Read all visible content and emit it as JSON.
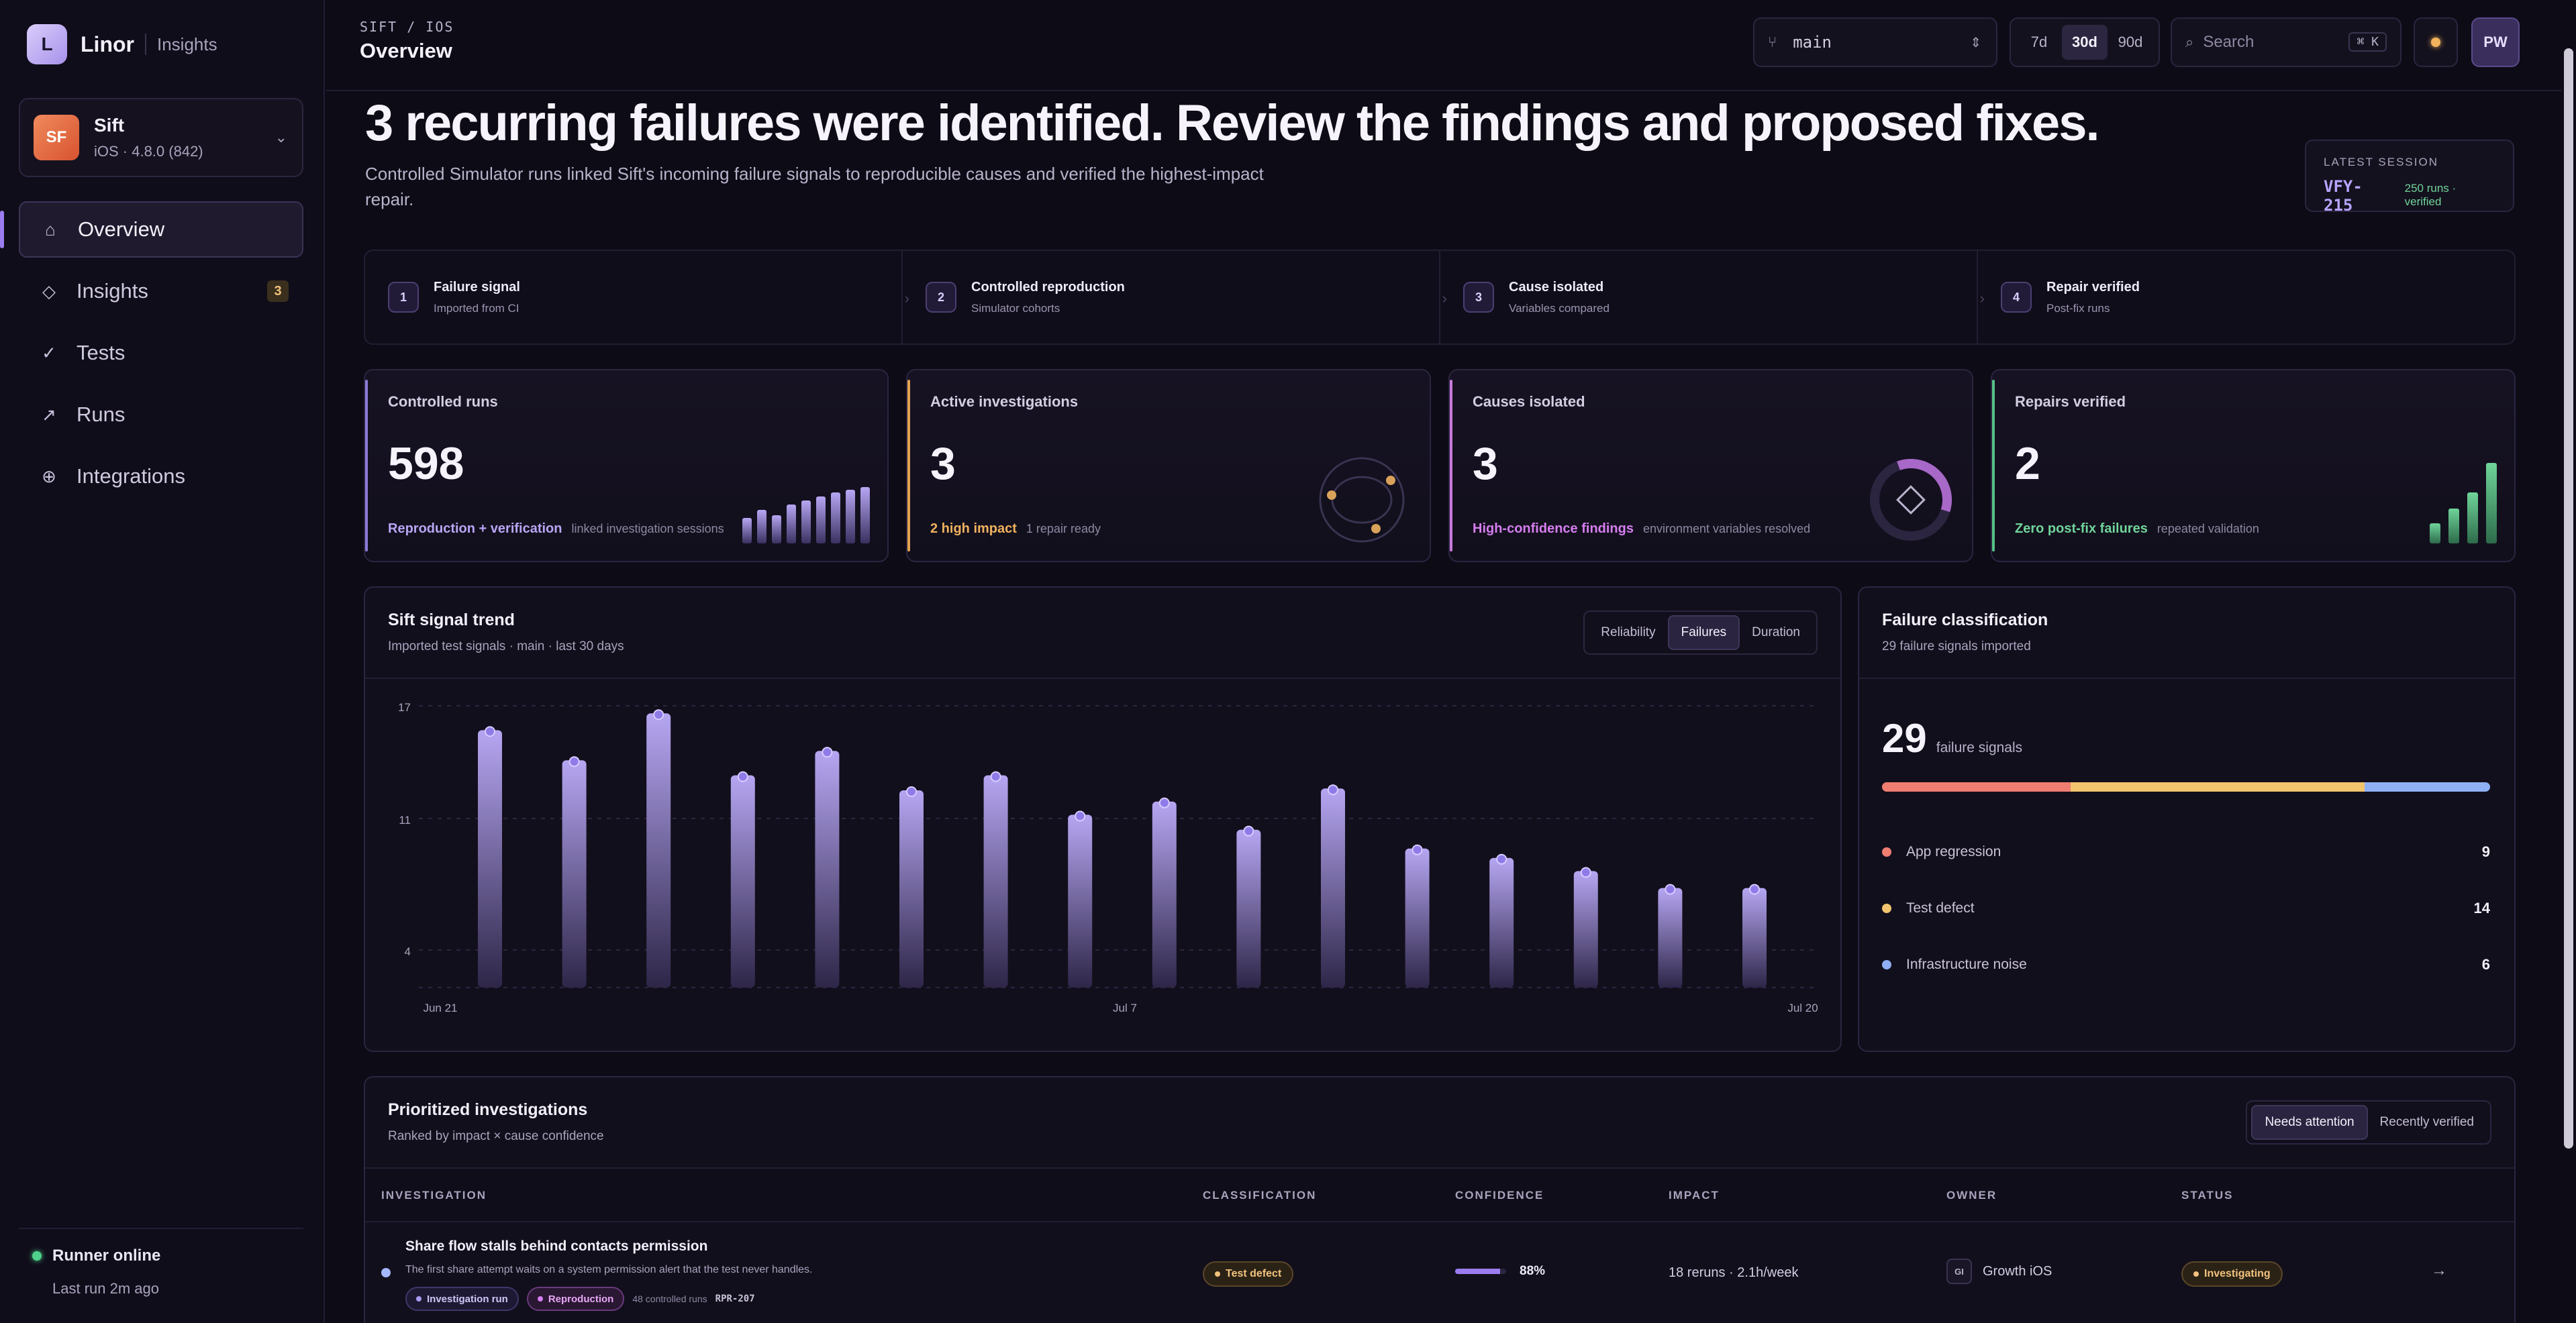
{
  "brand": {
    "logo_letter": "L",
    "name": "Linor",
    "section": "Insights"
  },
  "app": {
    "initials": "SF",
    "name": "Sift",
    "version": "iOS · 4.8.0 (842)"
  },
  "nav": [
    {
      "label": "Overview",
      "icon": "home-icon",
      "glyph": "⌂"
    },
    {
      "label": "Insights",
      "icon": "diamond-icon",
      "glyph": "◇",
      "badge": "3"
    },
    {
      "label": "Tests",
      "icon": "check-icon",
      "glyph": "✓"
    },
    {
      "label": "Runs",
      "icon": "arrow-up-right-icon",
      "glyph": "↗"
    },
    {
      "label": "Integrations",
      "icon": "plus-circle-icon",
      "glyph": "⊕"
    }
  ],
  "runner": {
    "title": "Runner online",
    "sub": "Last run 2m ago"
  },
  "topbar": {
    "breadcrumb": "SIFT / IOS",
    "title": "Overview",
    "branch": "main",
    "ranges": [
      "7d",
      "30d",
      "90d"
    ],
    "active_range": "30d",
    "search_placeholder": "Search",
    "search_shortcut": "⌘ K",
    "user_initials": "PW"
  },
  "hero": {
    "headline": "3 recurring failures were identified. Review the findings and proposed fixes.",
    "subline": "Controlled Simulator runs linked Sift's incoming failure signals to reproducible causes and verified the highest-impact repair.",
    "session_label": "LATEST SESSION",
    "session_id": "VFY-215",
    "session_meta": "250 runs · verified"
  },
  "steps": [
    {
      "num": "1",
      "title": "Failure signal",
      "sub": "Imported from CI"
    },
    {
      "num": "2",
      "title": "Controlled reproduction",
      "sub": "Simulator cohorts"
    },
    {
      "num": "3",
      "title": "Cause isolated",
      "sub": "Variables compared"
    },
    {
      "num": "4",
      "title": "Repair verified",
      "sub": "Post-fix runs"
    }
  ],
  "kpis": [
    {
      "title": "Controlled runs",
      "value": "598",
      "highlight": "Reproduction + verification",
      "note": "linked investigation sessions",
      "color": "#b8a6f5"
    },
    {
      "title": "Active investigations",
      "value": "3",
      "highlight": "2 high impact",
      "note": "1 repair ready",
      "color": "#f0b25e"
    },
    {
      "title": "Causes isolated",
      "value": "3",
      "highlight": "High-confidence findings",
      "note": "environment variables resolved",
      "color": "#d67ef0"
    },
    {
      "title": "Repairs verified",
      "value": "2",
      "highlight": "Zero post-fix failures",
      "note": "repeated validation",
      "color": "#6fd49a"
    }
  ],
  "trend": {
    "title": "Sift signal trend",
    "sub": "Imported test signals · main · last 30 days",
    "tabs": [
      "Reliability",
      "Failures",
      "Duration"
    ],
    "active_tab": "Failures"
  },
  "chart_data": {
    "type": "bar",
    "title": "Sift signal trend",
    "y_ticks": [
      "17",
      "11",
      "4"
    ],
    "ylim": [
      2,
      17
    ],
    "x_tick_labels": [
      "Jun 21",
      "Jul 7",
      "Jul 20"
    ],
    "values": [
      15.7,
      14.1,
      16.6,
      13.3,
      14.6,
      12.5,
      13.3,
      11.2,
      11.9,
      10.4,
      12.6,
      9.4,
      8.9,
      8.2,
      7.3,
      7.3
    ],
    "grid": true,
    "color": "#a897e8"
  },
  "classification": {
    "title": "Failure classification",
    "sub": "29 failure signals imported",
    "total": "29",
    "total_label": "failure signals",
    "items": [
      {
        "label": "App regression",
        "value": "9",
        "color": "#f07d72"
      },
      {
        "label": "Test defect",
        "value": "14",
        "color": "#f2c46d"
      },
      {
        "label": "Infrastructure noise",
        "value": "6",
        "color": "#8fb0f5"
      }
    ]
  },
  "investigations": {
    "title": "Prioritized investigations",
    "sub": "Ranked by impact × cause confidence",
    "tabs": [
      "Needs attention",
      "Recently verified"
    ],
    "active_tab": "Needs attention",
    "columns": [
      "INVESTIGATION",
      "CLASSIFICATION",
      "CONFIDENCE",
      "IMPACT",
      "OWNER",
      "STATUS"
    ],
    "rows": [
      {
        "title": "Share flow stalls behind contacts permission",
        "desc": "The first share attempt waits on a system permission alert that the test never handles.",
        "tag1": "Investigation run",
        "tag2": "Reproduction",
        "runs": "48 controlled runs",
        "id": "RPR-207",
        "classification": "Test defect",
        "confidence": "88%",
        "confidence_value": 0.88,
        "impact": "18 reruns · 2.1h/week",
        "owner_initials": "GI",
        "owner": "Growth iOS",
        "status": "Investigating"
      }
    ]
  }
}
